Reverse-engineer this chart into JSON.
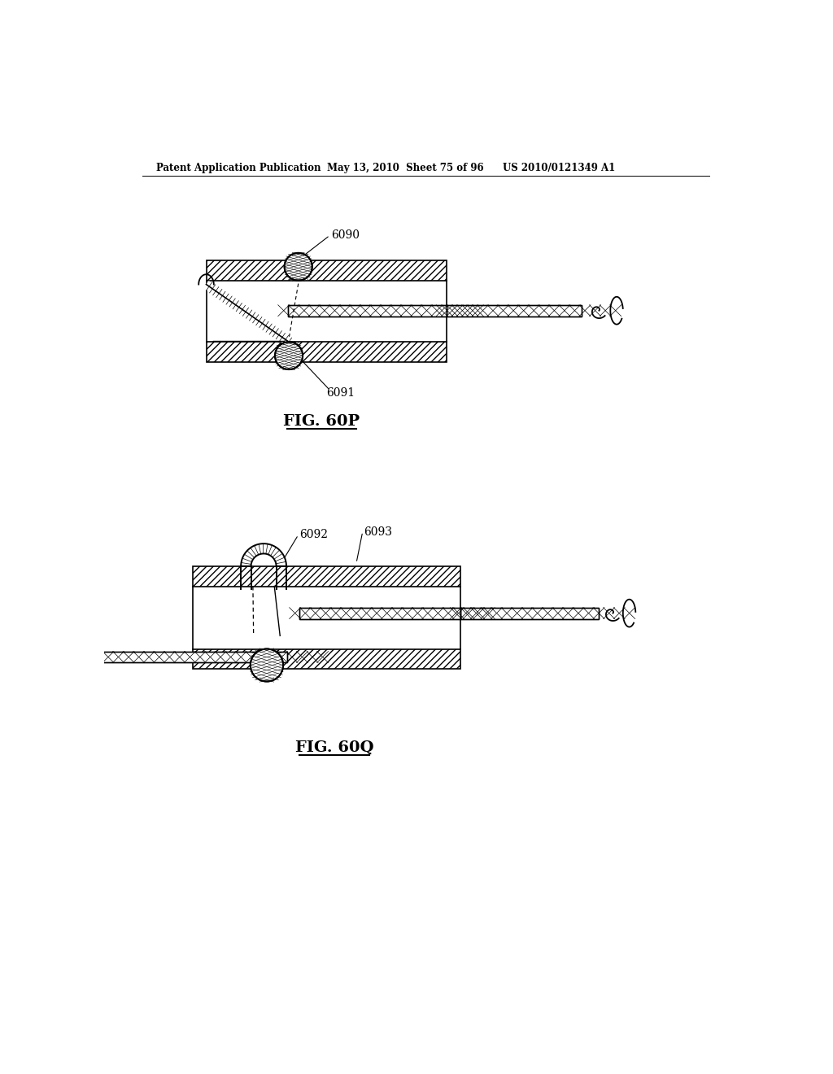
{
  "background_color": "#ffffff",
  "header_left": "Patent Application Publication",
  "header_mid": "May 13, 2010  Sheet 75 of 96",
  "header_right": "US 2010/0121349 A1",
  "fig1_label": "FIG. 60P",
  "fig2_label": "FIG. 60Q",
  "label_6090": "6090",
  "label_6091": "6091",
  "label_6092": "6092",
  "label_6093": "6093"
}
